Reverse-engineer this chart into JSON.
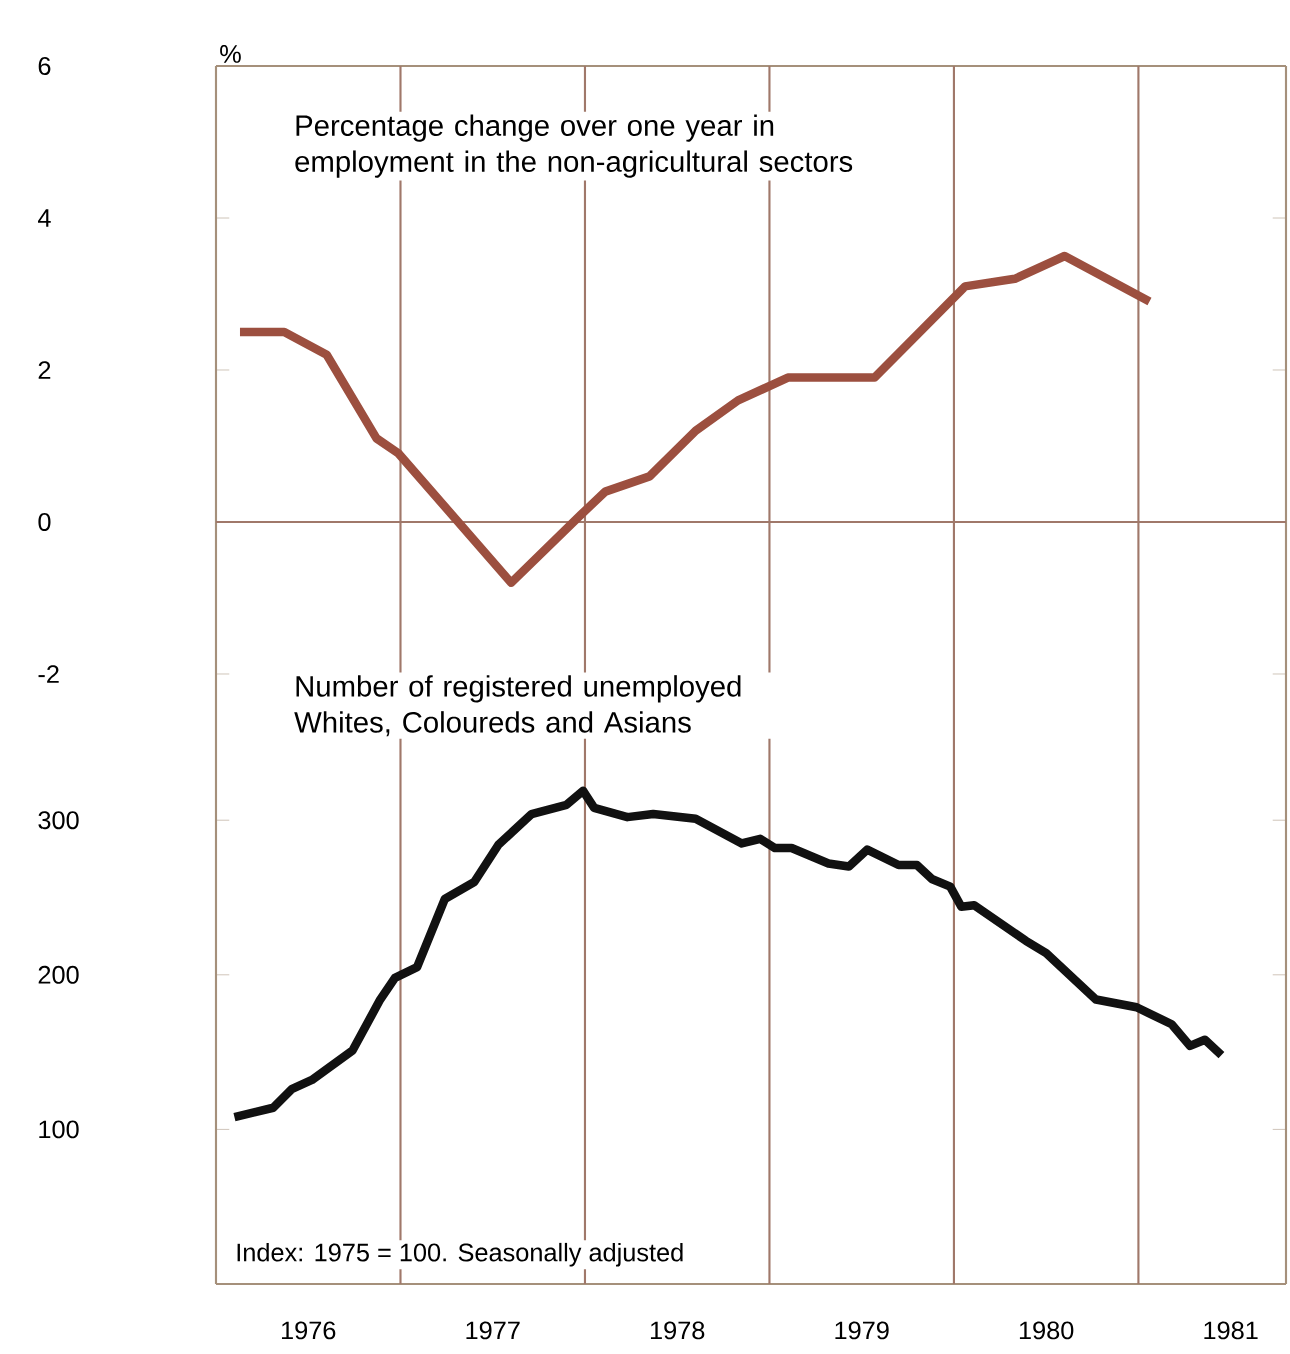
{
  "chart_data": [
    {
      "type": "line",
      "ylabel": "%",
      "xlim": [
        1976,
        1981.8
      ],
      "ylim": [
        -2.5,
        6
      ],
      "yticks": [
        -2,
        0,
        2,
        4,
        6
      ],
      "tick_labels": "y",
      "ref_lines": [
        {
          "axis": "y",
          "value": 0,
          "color": "#a0786a"
        },
        {
          "axis": "x",
          "value": 1977,
          "color": "#a0786a"
        },
        {
          "axis": "x",
          "value": 1978,
          "color": "#a0786a"
        },
        {
          "axis": "x",
          "value": 1979,
          "color": "#a0786a"
        },
        {
          "axis": "x",
          "value": 1980,
          "color": "#a0786a"
        },
        {
          "axis": "x",
          "value": 1981,
          "color": "#a0786a"
        }
      ],
      "series": [
        {
          "name": "Percentage change over one year in employment in the non-agricultural sectors",
          "color": "#9c4f3f",
          "x": [
            1976.13,
            1976.37,
            1976.6,
            1976.87,
            1976.99,
            1977.6,
            1977.98,
            1978.11,
            1978.35,
            1978.6,
            1978.83,
            1979.1,
            1979.57,
            1980.06,
            1980.33,
            1980.6,
            1981.06
          ],
          "values": [
            2.5,
            2.5,
            2.2,
            1.1,
            0.9,
            -0.8,
            0.1,
            0.4,
            0.6,
            1.2,
            1.6,
            1.9,
            1.9,
            3.1,
            3.2,
            3.5,
            2.9
          ]
        }
      ]
    },
    {
      "type": "line",
      "xlim": [
        1976,
        1981.8
      ],
      "ylim": [
        0,
        370
      ],
      "yticks": [
        100,
        200,
        300
      ],
      "xticks": [
        {
          "value": 1976.5,
          "label": "1976"
        },
        {
          "value": 1977.5,
          "label": "1977"
        },
        {
          "value": 1978.5,
          "label": "1978"
        },
        {
          "value": 1979.5,
          "label": "1979"
        },
        {
          "value": 1980.5,
          "label": "1980"
        },
        {
          "value": 1981.5,
          "label": "1981"
        }
      ],
      "annotations": [
        "Index: 1975 = 100. Seasonally adjusted"
      ],
      "ref_lines": [
        {
          "axis": "x",
          "value": 1977,
          "color": "#a0786a"
        },
        {
          "axis": "x",
          "value": 1978,
          "color": "#a0786a"
        },
        {
          "axis": "x",
          "value": 1979,
          "color": "#a0786a"
        },
        {
          "axis": "x",
          "value": 1980,
          "color": "#a0786a"
        },
        {
          "axis": "x",
          "value": 1981,
          "color": "#a0786a"
        }
      ],
      "series": [
        {
          "name": "Number of registered unemployed Whites, Coloureds and Asians",
          "color": "#111111",
          "x": [
            1976.1,
            1976.31,
            1976.41,
            1976.52,
            1976.74,
            1976.89,
            1976.97,
            1977.09,
            1977.24,
            1977.4,
            1977.53,
            1977.71,
            1977.9,
            1977.99,
            1978.05,
            1978.23,
            1978.37,
            1978.6,
            1978.85,
            1978.95,
            1979.03,
            1979.12,
            1979.32,
            1979.43,
            1979.53,
            1979.7,
            1979.8,
            1979.88,
            1979.98,
            1980.04,
            1980.11,
            1980.39,
            1980.5,
            1980.77,
            1980.99,
            1981.18,
            1981.28,
            1981.36,
            1981.45
          ],
          "values": [
            108,
            114,
            126,
            132,
            151,
            184,
            198,
            205,
            249,
            260,
            284,
            304,
            310,
            319,
            308,
            302,
            304,
            301,
            285,
            288,
            282,
            282,
            272,
            270,
            281,
            271,
            271,
            262,
            257,
            244,
            245,
            222,
            214,
            184,
            179,
            168,
            154,
            158,
            148
          ]
        }
      ]
    }
  ]
}
